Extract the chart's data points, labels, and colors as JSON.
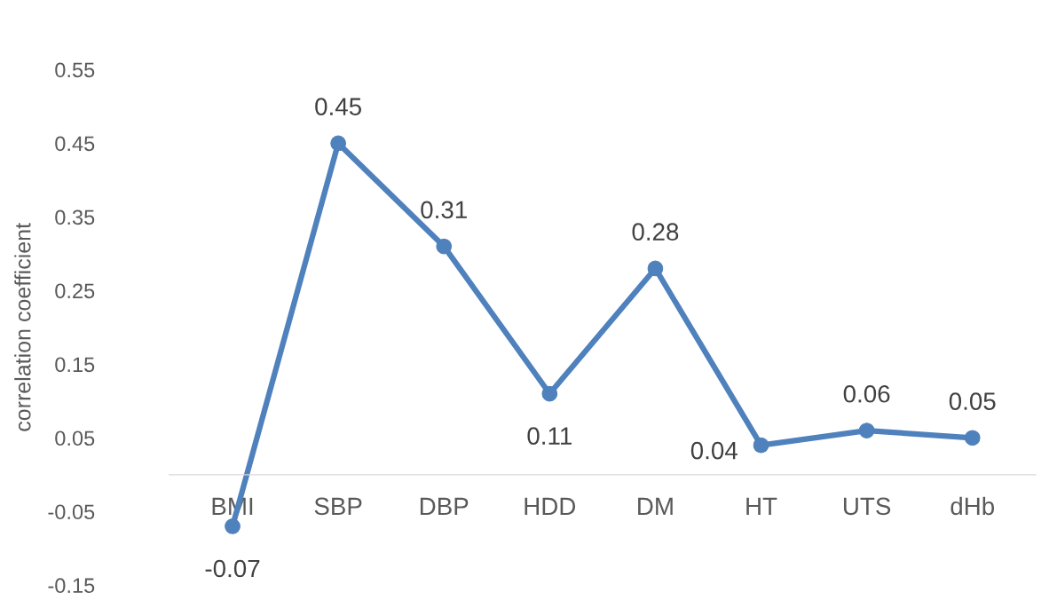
{
  "chart_data": {
    "type": "line",
    "ylabel": "correlation coefficient",
    "categories": [
      "BMI",
      "SBP",
      "DBP",
      "HDD",
      "DM",
      "HT",
      "UTS",
      "dHb"
    ],
    "series": [
      {
        "color": "#4f81bd",
        "values": [
          -0.07,
          0.45,
          0.31,
          0.11,
          0.28,
          0.04,
          0.06,
          0.05
        ]
      }
    ],
    "ylim": [
      -0.15,
      0.55
    ],
    "yticks": [
      -0.15,
      -0.05,
      0.05,
      0.15,
      0.25,
      0.35,
      0.45,
      0.55
    ],
    "marker": "circle",
    "line_style": "solid",
    "grid": false,
    "data_labels": true
  }
}
